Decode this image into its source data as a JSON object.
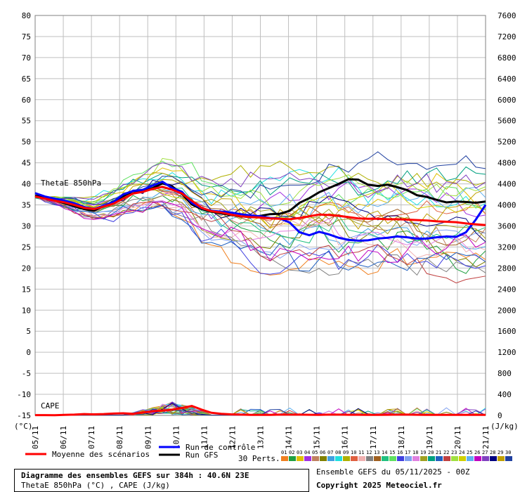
{
  "chart_data": {
    "type": "line",
    "left_axis": {
      "unit": "(°C)",
      "ticks": [
        80,
        75,
        70,
        65,
        60,
        55,
        50,
        45,
        40,
        35,
        30,
        25,
        20,
        15,
        10,
        5,
        0,
        -5,
        -10,
        -15
      ],
      "range": [
        -15,
        80
      ]
    },
    "right_axis": {
      "unit": "(J/kg)",
      "ticks": [
        7600,
        7200,
        6800,
        6400,
        6000,
        5600,
        5200,
        4800,
        4400,
        4000,
        3600,
        3200,
        2800,
        2400,
        2000,
        1600,
        1200,
        800,
        400,
        0
      ],
      "range": [
        0,
        7600
      ]
    },
    "x_labels": [
      "05/11",
      "06/11",
      "07/11",
      "08/11",
      "09/11",
      "10/11",
      "11/11",
      "12/11",
      "13/11",
      "14/11",
      "15/11",
      "16/11",
      "17/11",
      "18/11",
      "19/11",
      "20/11",
      "21/11"
    ],
    "series_labels": {
      "theta": "ThetaE 850hPa",
      "cape": "CAPE"
    },
    "mean_thetae": [
      37,
      36.5,
      36,
      35.6,
      35,
      34.3,
      34,
      34.6,
      35.3,
      36.5,
      37.7,
      38.1,
      38.8,
      39.3,
      38.6,
      37.7,
      36,
      34.3,
      33.5,
      33.2,
      32.7,
      32.3,
      32.1,
      32,
      31.8,
      31.7,
      31.6,
      31.9,
      32.3,
      32.7,
      32.6,
      32.4,
      32.1,
      31.8,
      31.7,
      31.7,
      31.6,
      31.6,
      31.5,
      31.4,
      31.3,
      31.1,
      31,
      30.9,
      30.6,
      30.4,
      30.2
    ],
    "control_thetae": [
      37.8,
      37,
      36.5,
      36,
      35.4,
      34.5,
      34,
      34.8,
      35.7,
      37.5,
      38.3,
      38.6,
      39.6,
      40.5,
      39,
      38.1,
      35.5,
      34.2,
      33.6,
      33.4,
      33.2,
      32.8,
      32.5,
      32.3,
      31.9,
      31.8,
      30.8,
      28.5,
      27.8,
      28.6,
      28,
      27.2,
      26.7,
      26.5,
      26.6,
      27,
      27.2,
      27.5,
      27.3,
      27,
      27,
      27.3,
      27.5,
      27.4,
      28.5,
      31.5,
      35
    ],
    "gfs_thetae": [
      37.2,
      36.8,
      36.1,
      35.4,
      34.7,
      34,
      33.6,
      34.7,
      35.8,
      37.1,
      38.3,
      38.1,
      39,
      40.1,
      39.4,
      37.6,
      35.1,
      34,
      33.4,
      33,
      32.6,
      32.3,
      32.1,
      32.4,
      32.8,
      32.9,
      33.6,
      35.5,
      36.6,
      38,
      39,
      40,
      41.1,
      41,
      39.8,
      39.5,
      39.8,
      39.2,
      38.5,
      37.3,
      36.9,
      36.2,
      35.6,
      35.8,
      35.7,
      35.5,
      35.8
    ],
    "mean_cape": [
      5,
      5,
      4,
      10,
      15,
      25,
      20,
      25,
      35,
      40,
      30,
      55,
      80,
      90,
      110,
      140,
      180,
      110,
      50,
      30,
      20,
      15,
      10,
      10,
      10,
      15,
      15,
      15,
      12,
      10,
      15,
      15,
      12,
      12,
      10,
      10,
      12,
      15,
      15,
      12,
      10,
      10,
      10,
      10,
      10,
      10,
      10
    ]
  },
  "legend": {
    "mean": "Moyenne des scénarios",
    "control": "Run de contrôle",
    "gfs": "Run GFS",
    "perts": "30 Perts.",
    "pert_numbers": [
      "01",
      "02",
      "03",
      "04",
      "05",
      "06",
      "07",
      "08",
      "09",
      "10",
      "11",
      "12",
      "13",
      "14",
      "15",
      "16",
      "17",
      "18",
      "19",
      "20",
      "21",
      "22",
      "23",
      "24",
      "25",
      "26",
      "27",
      "28",
      "29",
      "30"
    ],
    "pert_colors": [
      "#f08020",
      "#20a040",
      "#e0c000",
      "#a030e0",
      "#c08060",
      "#808000",
      "#40a0e0",
      "#20e0e0",
      "#b0b000",
      "#e06040",
      "#f0b0b0",
      "#808080",
      "#a06020",
      "#20c080",
      "#60e060",
      "#4040e0",
      "#80a0f0",
      "#e080e0",
      "#a0a020",
      "#00a080",
      "#2060c0",
      "#c04040",
      "#a0e040",
      "#d0d000",
      "#60b0f0",
      "#c000c0",
      "#8040c0",
      "#000080",
      "#c0a000",
      "#2040a0"
    ]
  },
  "footer": {
    "title_line1": "Diagramme des ensembles GEFS sur 384h : 40.6N 23E",
    "title_line2": "ThetaE 850hPa (°C) , CAPE (J/kg)",
    "ensemble_info": "Ensemble GEFS du 05/11/2025 - 00Z",
    "copyright": "Copyright 2025 Meteociel.fr"
  }
}
